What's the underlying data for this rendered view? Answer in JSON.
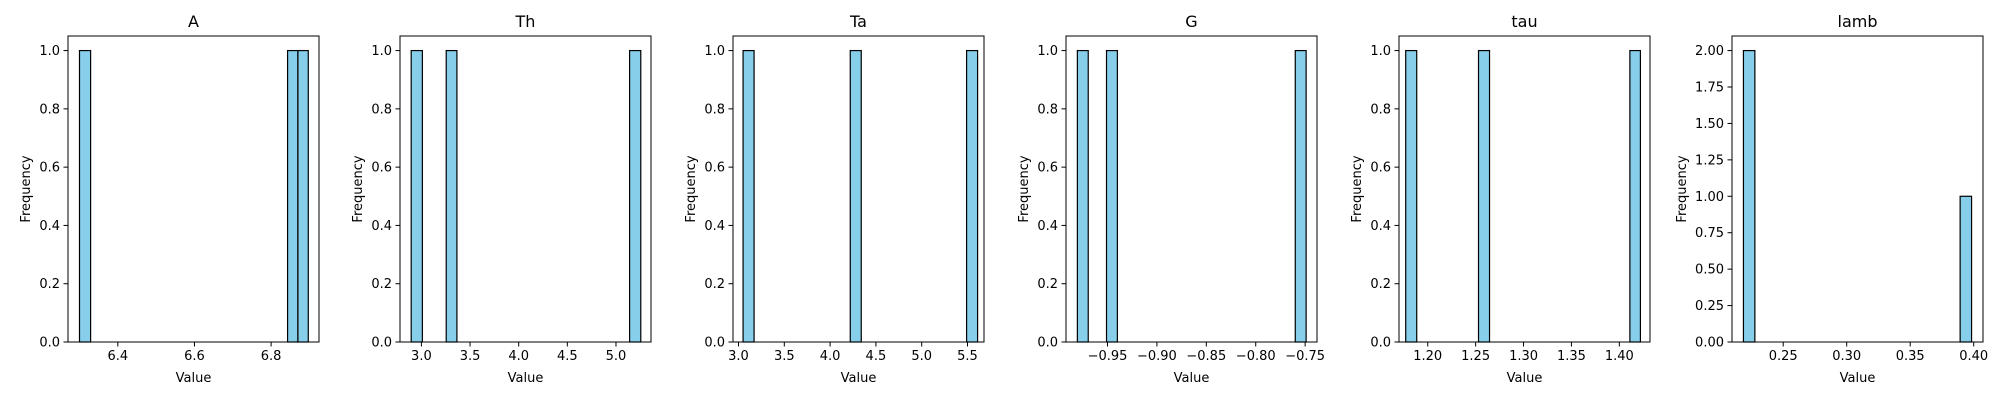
{
  "figure": {
    "background": "#ffffff"
  },
  "style": {
    "bar_fill": "#87ceeb",
    "bar_edge": "#000000",
    "frame": "#000000"
  },
  "chart_data": [
    {
      "type": "bar",
      "title": "A",
      "xlabel": "Value",
      "ylabel": "Frequency",
      "xlim": [
        6.27,
        6.925
      ],
      "ylim": [
        0,
        1.05
      ],
      "xticks": [
        6.4,
        6.6,
        6.8
      ],
      "xtick_labels": [
        "6.4",
        "6.6",
        "6.8"
      ],
      "yticks": [
        0,
        0.2,
        0.4,
        0.6,
        0.8,
        1.0
      ],
      "ytick_labels": [
        "0.0",
        "0.2",
        "0.4",
        "0.6",
        "0.8",
        "1.0"
      ],
      "bars": [
        {
          "x0": 6.3,
          "x1": 6.329,
          "value": 1
        },
        {
          "x0": 6.843,
          "x1": 6.87,
          "value": 1
        },
        {
          "x0": 6.87,
          "x1": 6.897,
          "value": 1
        }
      ]
    },
    {
      "type": "bar",
      "title": "Th",
      "xlabel": "Value",
      "ylabel": "Frequency",
      "xlim": [
        2.78,
        5.36
      ],
      "ylim": [
        0,
        1.05
      ],
      "xticks": [
        3.0,
        3.5,
        4.0,
        4.5,
        5.0
      ],
      "xtick_labels": [
        "3.0",
        "3.5",
        "4.0",
        "4.5",
        "5.0"
      ],
      "yticks": [
        0,
        0.2,
        0.4,
        0.6,
        0.8,
        1.0
      ],
      "ytick_labels": [
        "0.0",
        "0.2",
        "0.4",
        "0.6",
        "0.8",
        "1.0"
      ],
      "bars": [
        {
          "x0": 2.895,
          "x1": 3.01,
          "value": 1
        },
        {
          "x0": 3.255,
          "x1": 3.365,
          "value": 1
        },
        {
          "x0": 5.14,
          "x1": 5.255,
          "value": 1
        }
      ]
    },
    {
      "type": "bar",
      "title": "Ta",
      "xlabel": "Value",
      "ylabel": "Frequency",
      "xlim": [
        2.94,
        5.68
      ],
      "ylim": [
        0,
        1.05
      ],
      "xticks": [
        3.0,
        3.5,
        4.0,
        4.5,
        5.0,
        5.5
      ],
      "xtick_labels": [
        "3.0",
        "3.5",
        "4.0",
        "4.5",
        "5.0",
        "5.5"
      ],
      "yticks": [
        0,
        0.2,
        0.4,
        0.6,
        0.8,
        1.0
      ],
      "ytick_labels": [
        "0.0",
        "0.2",
        "0.4",
        "0.6",
        "0.8",
        "1.0"
      ],
      "bars": [
        {
          "x0": 3.05,
          "x1": 3.17,
          "value": 1
        },
        {
          "x0": 4.22,
          "x1": 4.34,
          "value": 1
        },
        {
          "x0": 5.49,
          "x1": 5.61,
          "value": 1
        }
      ]
    },
    {
      "type": "bar",
      "title": "G",
      "xlabel": "Value",
      "ylabel": "Frequency",
      "xlim": [
        -0.992,
        -0.738
      ],
      "ylim": [
        0,
        1.05
      ],
      "xticks": [
        -0.95,
        -0.9,
        -0.85,
        -0.8,
        -0.75
      ],
      "xtick_labels": [
        "−0.95",
        "−0.90",
        "−0.85",
        "−0.80",
        "−0.75"
      ],
      "yticks": [
        0,
        0.2,
        0.4,
        0.6,
        0.8,
        1.0
      ],
      "ytick_labels": [
        "0.0",
        "0.2",
        "0.4",
        "0.6",
        "0.8",
        "1.0"
      ],
      "bars": [
        {
          "x0": -0.9805,
          "x1": -0.9695,
          "value": 1
        },
        {
          "x0": -0.951,
          "x1": -0.94,
          "value": 1
        },
        {
          "x0": -0.76,
          "x1": -0.749,
          "value": 1
        }
      ]
    },
    {
      "type": "bar",
      "title": "tau",
      "xlabel": "Value",
      "ylabel": "Frequency",
      "xlim": [
        1.17,
        1.432
      ],
      "ylim": [
        0,
        1.05
      ],
      "xticks": [
        1.2,
        1.25,
        1.3,
        1.35,
        1.4
      ],
      "xtick_labels": [
        "1.20",
        "1.25",
        "1.30",
        "1.35",
        "1.40"
      ],
      "yticks": [
        0,
        0.2,
        0.4,
        0.6,
        0.8,
        1.0
      ],
      "ytick_labels": [
        "0.0",
        "0.2",
        "0.4",
        "0.6",
        "0.8",
        "1.0"
      ],
      "bars": [
        {
          "x0": 1.177,
          "x1": 1.1885,
          "value": 1
        },
        {
          "x0": 1.253,
          "x1": 1.2645,
          "value": 1
        },
        {
          "x0": 1.411,
          "x1": 1.422,
          "value": 1
        }
      ]
    },
    {
      "type": "bar",
      "title": "lamb",
      "xlabel": "Value",
      "ylabel": "Frequency",
      "xlim": [
        0.2097,
        0.4073
      ],
      "ylim": [
        0,
        2.1
      ],
      "xticks": [
        0.25,
        0.3,
        0.35,
        0.4
      ],
      "xtick_labels": [
        "0.25",
        "0.30",
        "0.35",
        "0.40"
      ],
      "yticks": [
        0,
        0.25,
        0.5,
        0.75,
        1.0,
        1.25,
        1.5,
        1.75,
        2.0
      ],
      "ytick_labels": [
        "0.00",
        "0.25",
        "0.50",
        "0.75",
        "1.00",
        "1.25",
        "1.50",
        "1.75",
        "2.00"
      ],
      "bars": [
        {
          "x0": 0.2187,
          "x1": 0.2277,
          "value": 2
        },
        {
          "x0": 0.3893,
          "x1": 0.3983,
          "value": 1
        }
      ]
    }
  ]
}
